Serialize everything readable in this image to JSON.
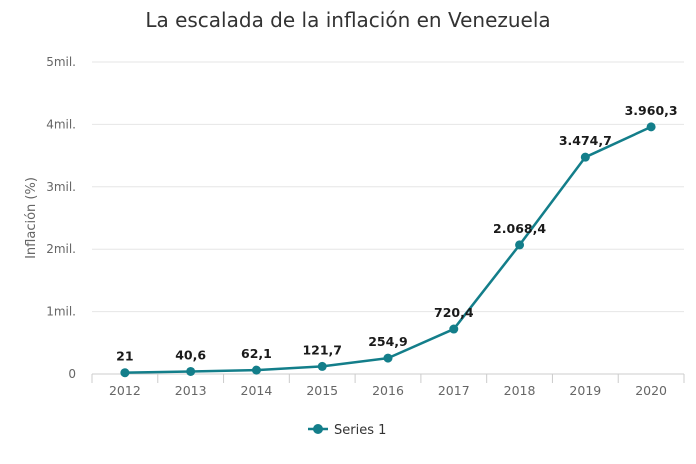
{
  "chart_data": {
    "type": "line",
    "title": "La escalada de la inflación en Venezuela",
    "xlabel": "",
    "ylabel": "Inflación (%)",
    "categories": [
      "2012",
      "2013",
      "2014",
      "2015",
      "2016",
      "2017",
      "2018",
      "2019",
      "2020"
    ],
    "series": [
      {
        "name": "Series 1",
        "values": [
          21,
          40.6,
          62.1,
          121.7,
          254.9,
          720.4,
          2068.4,
          3474.7,
          3960.3
        ],
        "data_labels": [
          "21",
          "40,6",
          "62,1",
          "121,7",
          "254,9",
          "720,4",
          "2.068,4",
          "3.474,7",
          "3.960,3"
        ],
        "color": "#137e8a"
      }
    ],
    "ylim": [
      0,
      5000
    ],
    "yticks": [
      0,
      1000,
      2000,
      3000,
      4000,
      5000
    ],
    "ytick_labels": [
      "0",
      "1mil.",
      "2mil.",
      "3mil.",
      "4mil.",
      "5mil."
    ],
    "grid": true,
    "legend": "bottom-center"
  }
}
